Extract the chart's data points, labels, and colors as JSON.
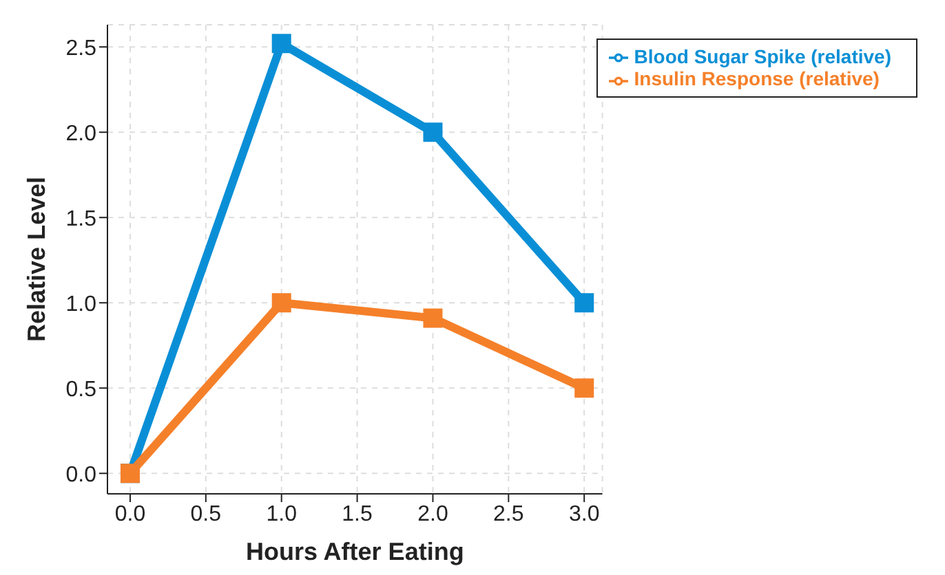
{
  "chart_data": {
    "type": "line",
    "xlabel": "Hours After Eating",
    "ylabel": "Relative Level",
    "x": [
      0,
      1,
      2,
      3
    ],
    "series": [
      {
        "name": "Blood Sugar Spike (relative)",
        "color": "#0a8fd6",
        "values": [
          0,
          2.52,
          2.0,
          1.0
        ]
      },
      {
        "name": "Insulin Response (relative)",
        "color": "#f5802a",
        "values": [
          0,
          1.0,
          0.91,
          0.5
        ]
      }
    ],
    "xlim": [
      -0.15,
      3.12
    ],
    "xticks": [
      {
        "value": 0,
        "label": "0.0"
      },
      0.5,
      {
        "value": 1,
        "label": "1.0"
      },
      1.5,
      {
        "value": 2,
        "label": "2.0"
      },
      2.5,
      {
        "value": 3,
        "label": "3.0"
      }
    ],
    "ylim": [
      -0.12,
      2.63
    ],
    "yticks": [
      {
        "value": 0,
        "label": "0.0"
      },
      0.5,
      {
        "value": 1,
        "label": "1.0"
      },
      1.5,
      {
        "value": 2,
        "label": "2.0"
      },
      2.5
    ],
    "grid": true,
    "legend": "top right",
    "marker": "square",
    "line_style": "solid"
  }
}
